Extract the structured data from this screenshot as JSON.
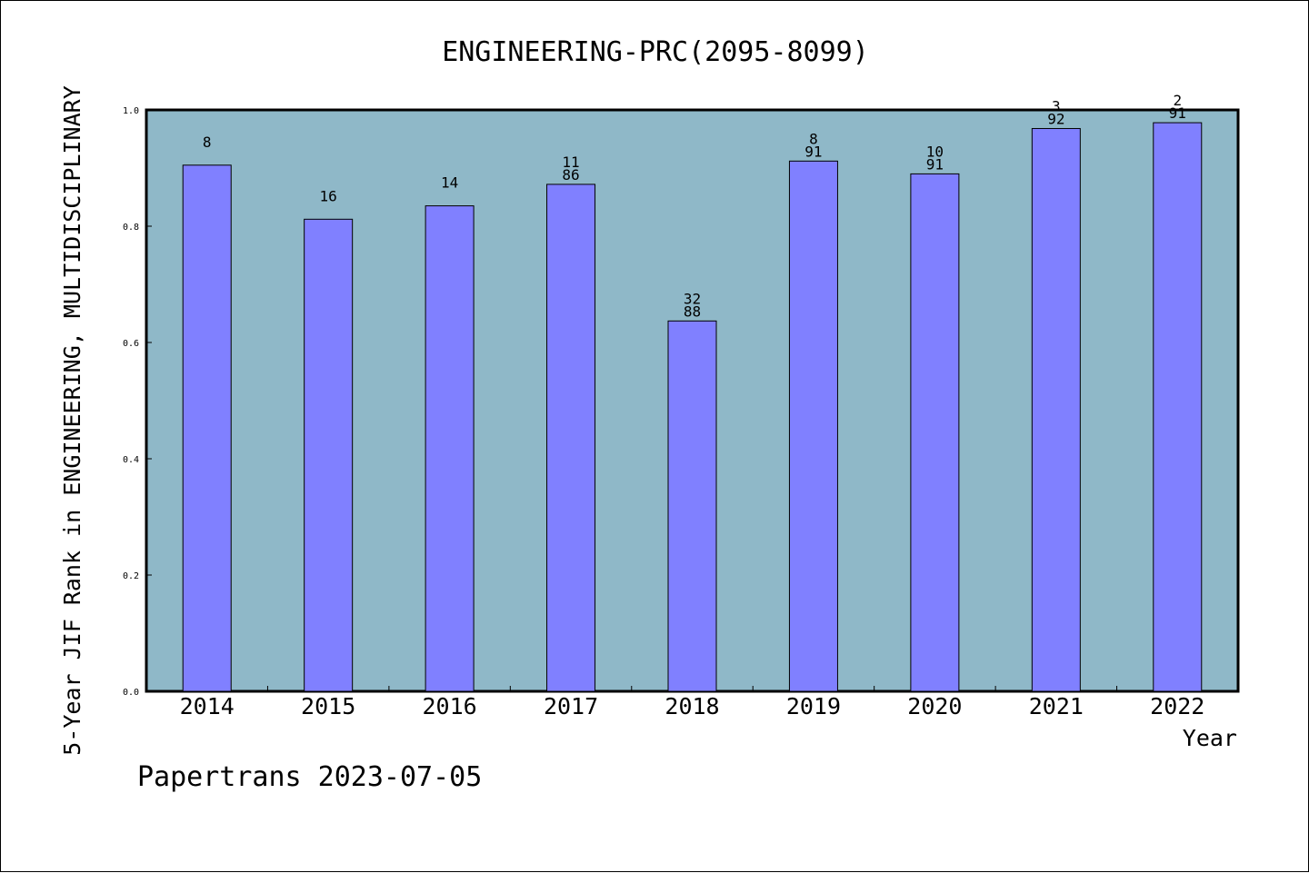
{
  "chart_data": {
    "type": "bar",
    "title": "ENGINEERING-PRC(2095-8099)",
    "xlabel": "Year",
    "ylabel": "5-Year JIF Rank in ENGINEERING, MULTIDISCIPLINARY",
    "ylim": [
      0,
      1.0
    ],
    "yticks": [
      "0.0",
      "0.2",
      "0.4",
      "0.6",
      "0.8",
      "1.0"
    ],
    "grid": false,
    "categories": [
      "2014",
      "2015",
      "2016",
      "2017",
      "2018",
      "2019",
      "2020",
      "2021",
      "2022"
    ],
    "values": [
      0.905,
      0.812,
      0.835,
      0.872,
      0.637,
      0.912,
      0.89,
      0.968,
      0.978
    ],
    "rank": [
      "8",
      "16",
      "14",
      "11",
      "32",
      "8",
      "10",
      "3",
      "2"
    ],
    "total": [
      "",
      "",
      "",
      "86",
      "88",
      "91",
      "91",
      "92",
      "91"
    ],
    "colors": {
      "plot_background": "#8fb8c8",
      "bar": "#8080ff",
      "bar_edge": "#000000"
    }
  },
  "footer": {
    "text": "Papertrans 2023-07-05"
  }
}
